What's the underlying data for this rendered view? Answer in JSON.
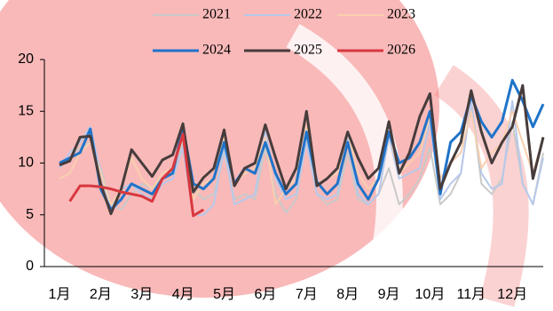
{
  "chart_data": {
    "type": "line",
    "categories": [
      "1月",
      null,
      null,
      null,
      "2月",
      null,
      null,
      null,
      "3月",
      null,
      null,
      null,
      "4月",
      null,
      null,
      null,
      "5月",
      null,
      null,
      null,
      "6月",
      null,
      null,
      null,
      "7月",
      null,
      null,
      null,
      "8月",
      null,
      null,
      null,
      "9月",
      null,
      null,
      null,
      "10月",
      null,
      null,
      null,
      "11月",
      null,
      null,
      null,
      "12月",
      null,
      null,
      null
    ],
    "ylim": [
      0,
      20
    ],
    "yticks": [
      0,
      5,
      10,
      15,
      20
    ],
    "series": [
      {
        "name": "2021",
        "color": "#c9c9c9",
        "values": [
          10,
          10.5,
          11.5,
          12,
          9.5,
          6,
          5.5,
          7,
          8,
          7.5,
          8.5,
          9,
          12,
          7.5,
          6.5,
          7,
          11,
          6.5,
          7,
          6.5,
          11.5,
          7,
          5.2,
          6.5,
          12.5,
          7,
          6,
          6.5,
          11,
          6.5,
          6,
          7,
          9.5,
          6,
          7,
          8.5,
          11.5,
          6,
          7,
          9,
          16,
          8,
          7,
          8.5,
          14,
          8,
          6,
          11
        ]
      },
      {
        "name": "2022",
        "color": "#b7c9ea",
        "values": [
          9.5,
          11,
          12,
          13.5,
          9,
          5.5,
          7.5,
          8,
          7,
          6.5,
          8,
          8.5,
          11.5,
          5,
          5,
          6,
          11.5,
          6,
          6.5,
          7,
          13,
          8.5,
          6.5,
          7,
          12,
          7,
          6.5,
          7,
          12.5,
          7,
          6,
          7,
          12.5,
          8.5,
          9,
          9.5,
          14,
          6.5,
          8,
          9,
          16,
          9,
          7.5,
          8,
          16,
          8,
          6,
          10.5
        ]
      },
      {
        "name": "2023",
        "color": "#f9cfae",
        "values": [
          8.5,
          9,
          11,
          12,
          9,
          6,
          7.5,
          10.5,
          8.5,
          7.5,
          9,
          9.5,
          12.5,
          6.5,
          8,
          8.5,
          12.5,
          8,
          9,
          9.5,
          12.5,
          6,
          7.5,
          8.5,
          13.5,
          8,
          8.5,
          9,
          13,
          9,
          7.5,
          8.5,
          13,
          9,
          10,
          11,
          14.5,
          8.5,
          10,
          11,
          15,
          9.5,
          11,
          12,
          15,
          12,
          9,
          12.5
        ]
      },
      {
        "name": "2024",
        "color": "#1f73c9",
        "values": [
          10,
          10.5,
          11,
          13.3,
          7.5,
          5.5,
          6.5,
          8,
          7.5,
          7,
          8.5,
          9,
          13.5,
          8,
          7.5,
          8.5,
          12,
          8,
          9.5,
          9,
          12,
          9,
          7,
          8,
          13,
          8.2,
          7,
          8,
          12,
          8,
          6.5,
          8.5,
          13,
          10,
          10.5,
          12,
          15,
          7,
          12,
          13,
          16.5,
          14,
          12.5,
          14,
          18,
          16,
          13.5,
          15.7
        ]
      },
      {
        "name": "2025",
        "color": "#473c3c",
        "values": [
          9.8,
          10.2,
          12.5,
          12.6,
          8,
          5.1,
          7.5,
          11.3,
          10,
          8.7,
          10.3,
          10.8,
          13.8,
          7.2,
          8.6,
          9.5,
          13.2,
          7.8,
          9.5,
          10,
          13.7,
          10.5,
          7.5,
          9.5,
          15,
          7.8,
          8.5,
          9.5,
          13,
          10.5,
          8.5,
          9.5,
          14,
          9,
          11,
          14.5,
          16.7,
          7.5,
          10,
          12,
          17,
          13,
          10,
          12,
          13.5,
          17.5,
          8.5,
          12.5
        ]
      },
      {
        "name": "2026",
        "color": "#d8383f",
        "values": [
          null,
          6.3,
          7.8,
          7.8,
          7.7,
          7.5,
          7.2,
          7,
          6.8,
          6.3,
          8.5,
          9.5,
          12.8,
          4.9,
          5.5,
          null,
          null,
          null,
          null,
          null,
          null,
          null,
          null,
          null,
          null,
          null,
          null,
          null,
          null,
          null,
          null,
          null,
          null,
          null,
          null,
          null,
          null,
          null,
          null,
          null,
          null,
          null,
          null,
          null,
          null,
          null,
          null,
          null
        ]
      }
    ]
  }
}
